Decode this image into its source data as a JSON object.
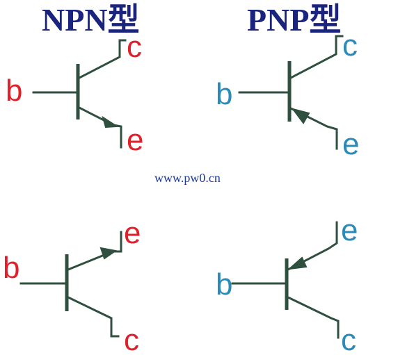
{
  "titles": {
    "npn": "NPN型",
    "pnp": "PNP型"
  },
  "watermark": "www.pw0.cn",
  "symbols": {
    "npn_top": {
      "base": "b",
      "collector": "c",
      "emitter": "e"
    },
    "pnp_top": {
      "base": "b",
      "collector": "c",
      "emitter": "e"
    },
    "npn_bottom": {
      "base": "b",
      "emitter": "e",
      "collector": "c"
    },
    "pnp_bottom": {
      "base": "b",
      "emitter": "e",
      "collector": "c"
    }
  },
  "colors": {
    "title": "#1a237e",
    "npn_label": "#e0202a",
    "pnp_label": "#2a8ab8",
    "wire": "#2f4f3f",
    "watermark": "#1a3aa0"
  }
}
